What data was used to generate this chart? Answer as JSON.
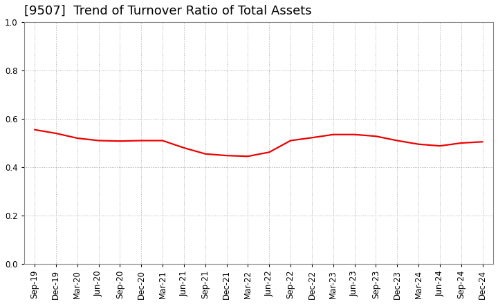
{
  "title": "[9507]  Trend of Turnover Ratio of Total Assets",
  "x_labels": [
    "Sep-19",
    "Dec-19",
    "Mar-20",
    "Jun-20",
    "Sep-20",
    "Dec-20",
    "Mar-21",
    "Jun-21",
    "Sep-21",
    "Dec-21",
    "Mar-22",
    "Jun-22",
    "Sep-22",
    "Dec-22",
    "Mar-23",
    "Jun-23",
    "Sep-23",
    "Dec-23",
    "Mar-24",
    "Jun-24",
    "Sep-24",
    "Dec-24"
  ],
  "y_values": [
    0.555,
    0.54,
    0.52,
    0.51,
    0.508,
    0.51,
    0.51,
    0.48,
    0.455,
    0.448,
    0.445,
    0.462,
    0.51,
    0.522,
    0.535,
    0.535,
    0.528,
    0.51,
    0.495,
    0.488,
    0.5,
    0.505
  ],
  "line_color": "#EE0000",
  "line_width": 1.6,
  "fill": false,
  "ylim": [
    0.0,
    1.0
  ],
  "yticks": [
    0.0,
    0.2,
    0.4,
    0.6,
    0.8,
    1.0
  ],
  "background_color": "#FFFFFF",
  "grid_color": "#AAAAAA",
  "title_fontsize": 13,
  "title_fontweight": "normal",
  "tick_fontsize": 8.5,
  "spine_color": "#888888",
  "grid_linestyle": ":",
  "grid_linewidth": 0.7
}
